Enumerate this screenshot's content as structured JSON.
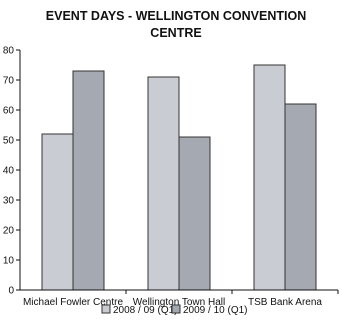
{
  "chart_data": {
    "type": "bar",
    "title_lines": [
      "EVENT DAYS - WELLINGTON CONVENTION",
      "CENTRE"
    ],
    "categories": [
      "Michael Fowler Centre",
      "Wellington Town Hall",
      "TSB Bank Arena"
    ],
    "series": [
      {
        "name": "2008 / 09 (Q1)",
        "values": [
          52,
          71,
          75
        ],
        "color": "#c9cdd3"
      },
      {
        "name": "2009 / 10 (Q1)",
        "values": [
          73,
          51,
          62
        ],
        "color": "#a5a9b2"
      }
    ],
    "yticks": [
      0,
      10,
      20,
      30,
      40,
      50,
      60,
      70,
      80
    ],
    "ylim": [
      0,
      80
    ],
    "grid": false,
    "legend_position": "bottom"
  }
}
